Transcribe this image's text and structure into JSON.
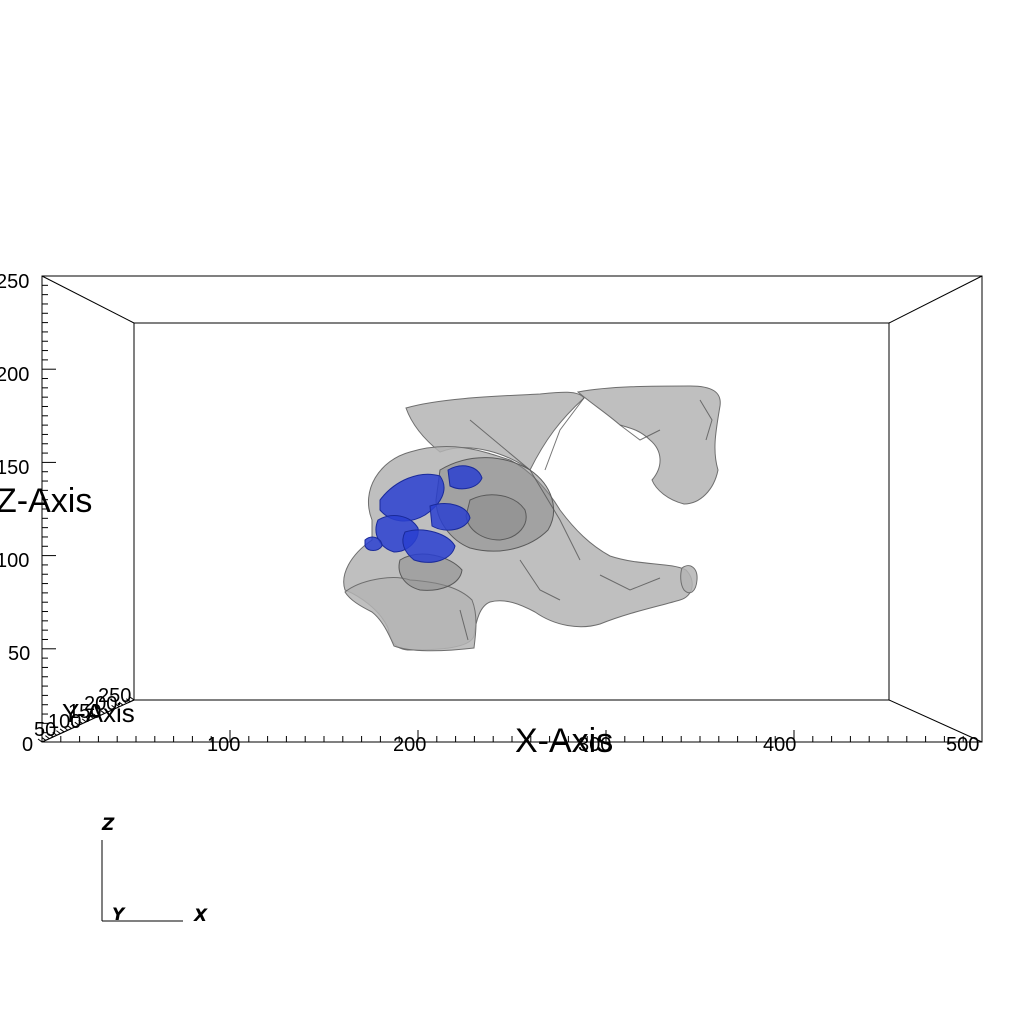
{
  "viewer": {
    "x_axis": {
      "title": "X-Axis",
      "ticks": [
        "0",
        "100",
        "200",
        "300",
        "400",
        "500"
      ]
    },
    "y_axis": {
      "title": "Y-Axis",
      "ticks": [
        "50",
        "100",
        "150",
        "200",
        "250"
      ]
    },
    "z_axis": {
      "title": "Z-Axis",
      "ticks": [
        "250",
        "200",
        "150",
        "100",
        "50"
      ]
    },
    "orientation_triad": {
      "z": "Z",
      "y": "Y",
      "x": "X"
    },
    "colors": {
      "background": "#ffffff",
      "surface": "#b4b4b4",
      "surface_edge": "#6e6e6e",
      "highlight": "#2a3fd0",
      "lines": "#000000"
    }
  }
}
